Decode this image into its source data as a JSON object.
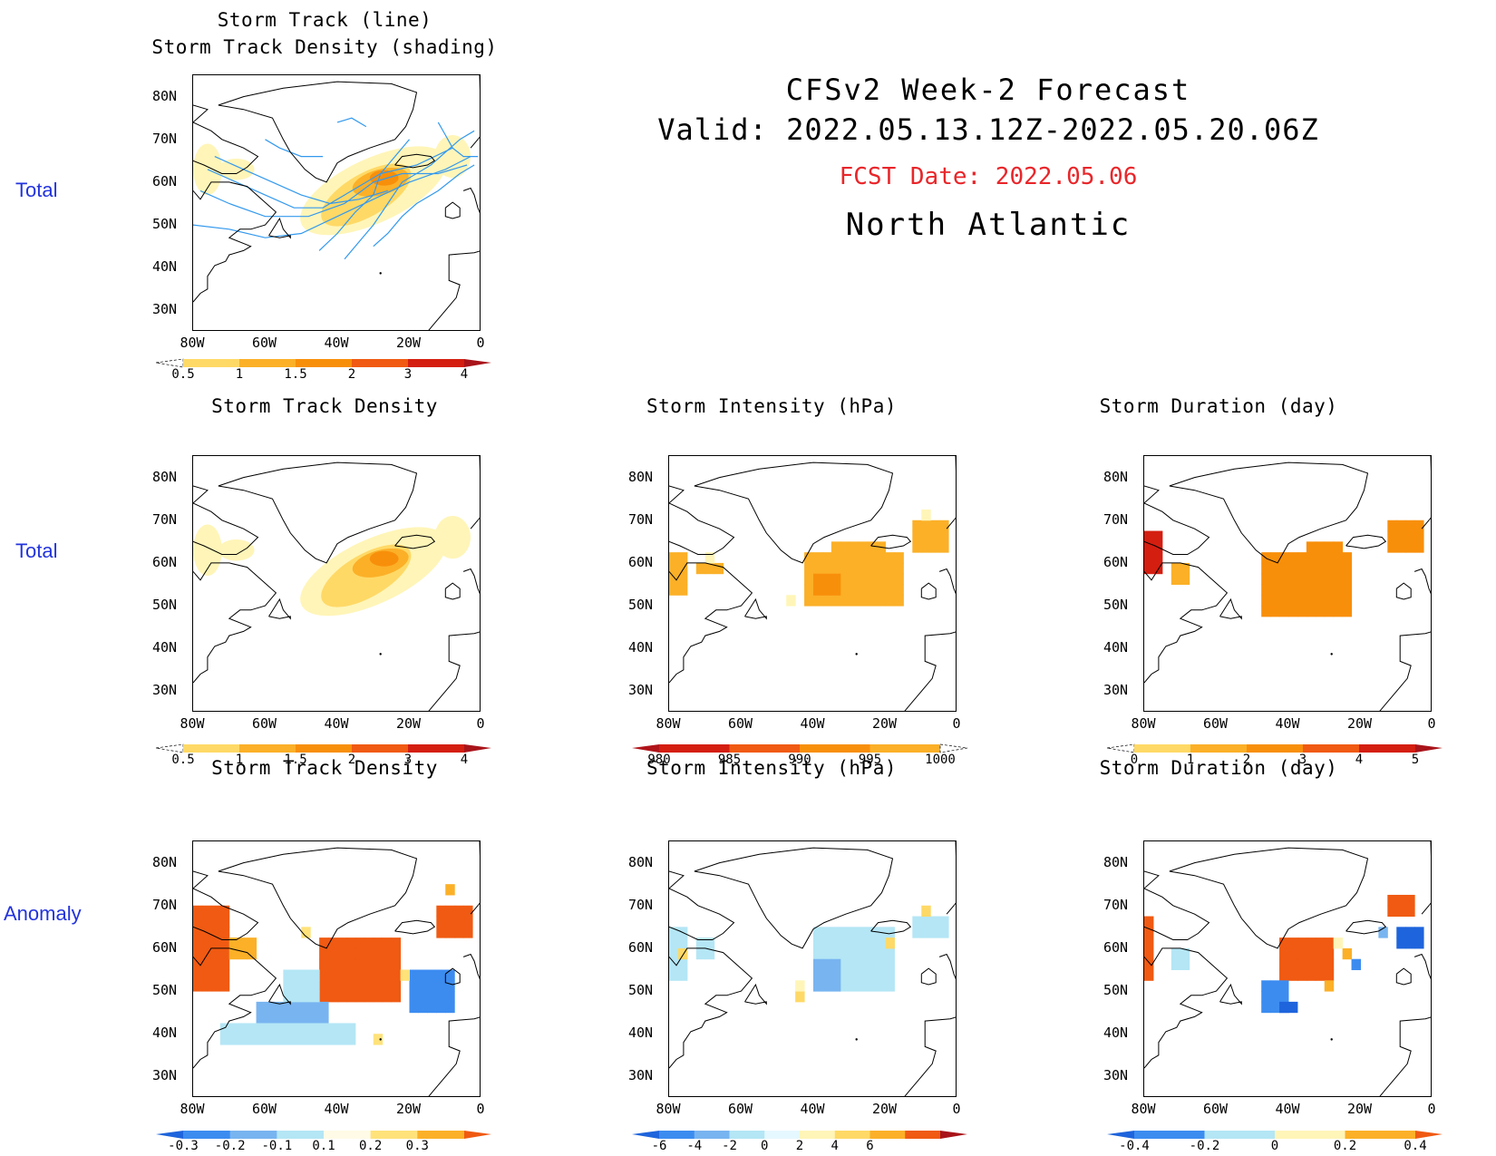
{
  "header": {
    "title_line1": "CFSv2 Week-2 Forecast",
    "title_line2": "Valid: 2022.05.13.12Z-2022.05.20.06Z",
    "fcst_date": "FCST Date: 2022.05.06",
    "region": "North Atlantic",
    "colors": {
      "fcst_date": "#e8262a",
      "row_label": "#2233dd"
    }
  },
  "row_labels": {
    "r1": "Total",
    "r2": "Total",
    "r3": "Anomaly"
  },
  "axes": {
    "lat_labels": [
      "80N",
      "70N",
      "60N",
      "50N",
      "40N",
      "30N"
    ],
    "lon_labels": [
      "80W",
      "60W",
      "40W",
      "20W",
      "0"
    ]
  },
  "panels": {
    "p1": {
      "title_line1": "Storm Track (line)",
      "title_line2": "Storm Track Density (shading)"
    },
    "p2": {
      "title": "Storm Track Density"
    },
    "p3": {
      "title": "Storm Intensity (hPa)"
    },
    "p4": {
      "title": "Storm Duration (day)"
    },
    "p5": {
      "title": "Storm Track Density"
    },
    "p6": {
      "title": "Storm Intensity (hPa)"
    },
    "p7": {
      "title": "Storm Duration (day)"
    }
  },
  "colorbars": {
    "density": {
      "labels": [
        "0.5",
        "1",
        "1.5",
        "2",
        "3",
        "4"
      ],
      "colors": [
        "#fff5b8",
        "#ffd966",
        "#fbb028",
        "#f88f0a",
        "#f05a12",
        "#d41e10",
        "#a8141a"
      ]
    },
    "intensity": {
      "labels": [
        "980",
        "985",
        "990",
        "995",
        "1000"
      ],
      "colors": [
        "#b0141a",
        "#d41e10",
        "#f05a12",
        "#f88f0a",
        "#fbb028",
        "#fff5b8"
      ]
    },
    "duration": {
      "labels": [
        "0",
        "1",
        "2",
        "3",
        "4",
        "5"
      ],
      "colors": [
        "#fff5b8",
        "#ffd966",
        "#fbb028",
        "#f88f0a",
        "#f05a12",
        "#d41e10",
        "#a8141a"
      ]
    },
    "density_anom": {
      "labels": [
        "-0.3",
        "-0.2",
        "-0.1",
        "0.1",
        "0.2",
        "0.3"
      ],
      "colors": [
        "#1e64dc",
        "#3c8cf0",
        "#78b4f0",
        "#b4e6f5",
        "#fffbe6",
        "#ffe27a",
        "#fbb028",
        "#f05a12"
      ]
    },
    "intensity_anom": {
      "labels": [
        "-6",
        "-4",
        "-2",
        "0",
        "2",
        "4",
        "6"
      ],
      "colors": [
        "#1e64dc",
        "#3c8cf0",
        "#78b4f0",
        "#b4e6f5",
        "#e6f8ff",
        "#fff5b8",
        "#ffd966",
        "#fbb028",
        "#f05a12",
        "#a8141a"
      ]
    },
    "duration_anom": {
      "labels": [
        "-0.4",
        "-0.2",
        "0",
        "0.2",
        "0.4"
      ],
      "colors": [
        "#1e64dc",
        "#3c8cf0",
        "#b4e6f5",
        "#fff5b8",
        "#fbb028",
        "#f05a12"
      ]
    }
  }
}
